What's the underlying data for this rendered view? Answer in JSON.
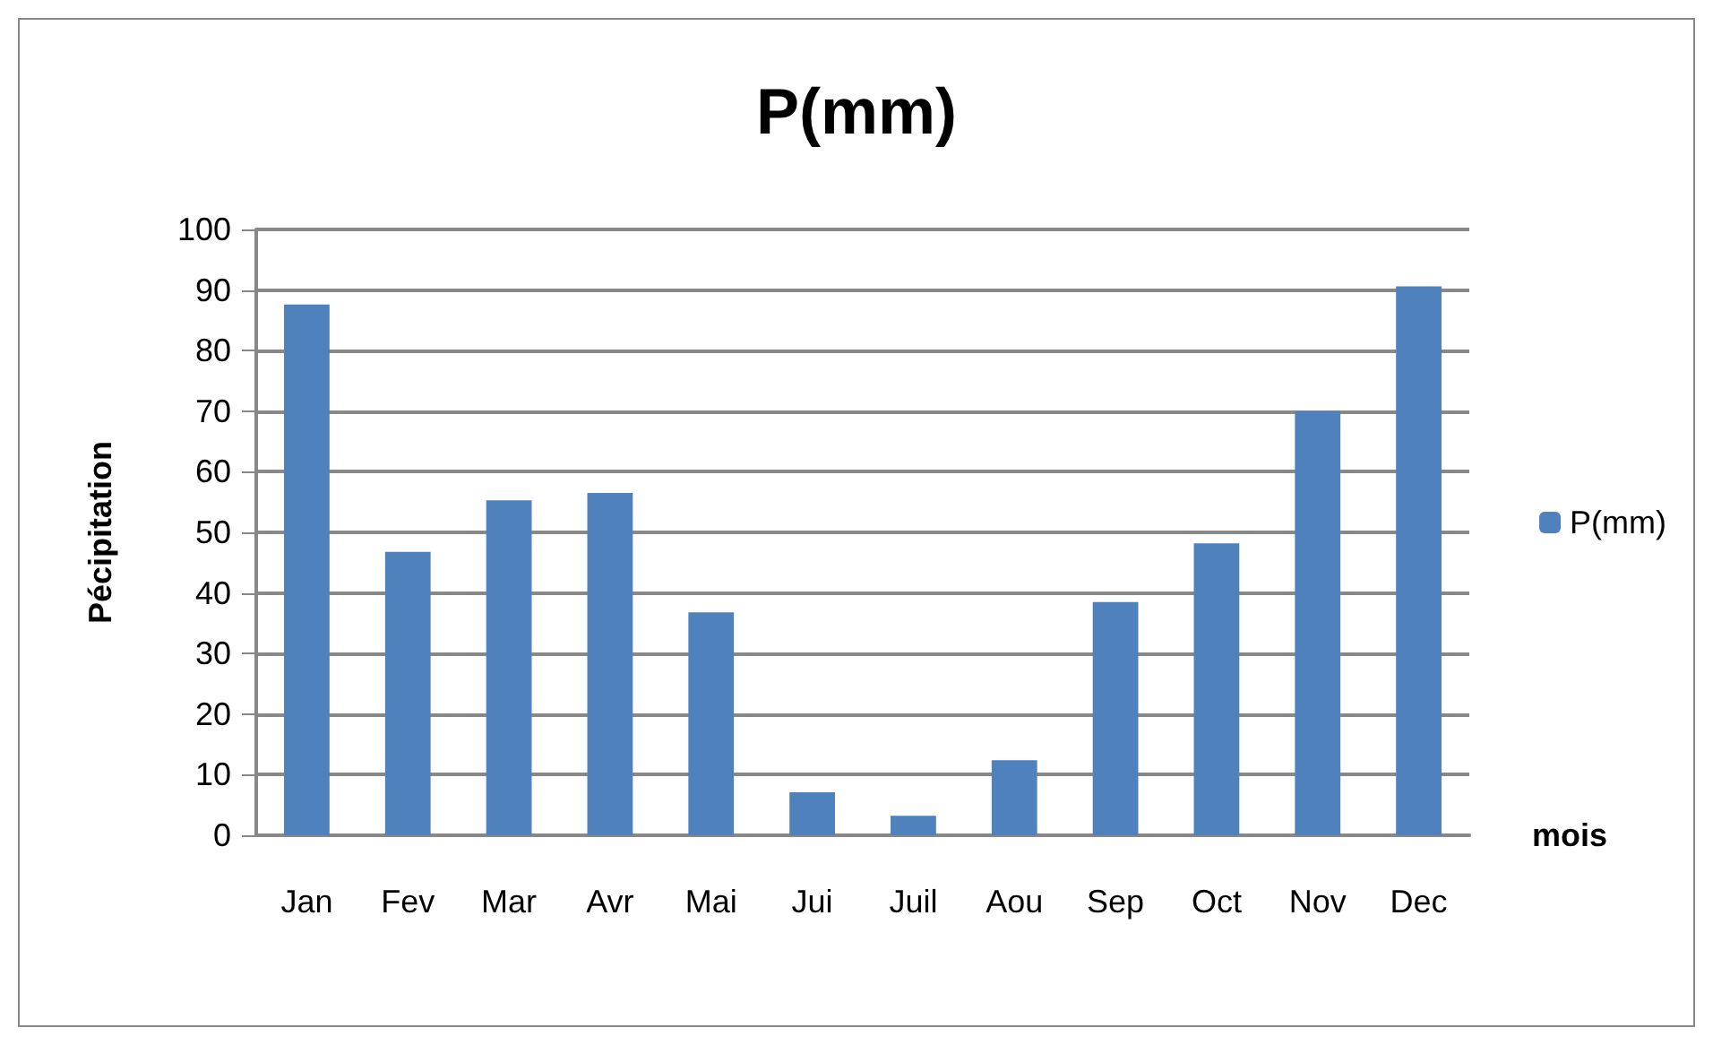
{
  "chart_data": {
    "type": "bar",
    "title": "P(mm)",
    "xlabel": "mois",
    "ylabel": "Pécipitation",
    "categories": [
      "Jan",
      "Fev",
      "Mar",
      "Avr",
      "Mai",
      "Jui",
      "Juil",
      "Aou",
      "Sep",
      "Oct",
      "Nov",
      "Dec"
    ],
    "series": [
      {
        "name": "P(mm)",
        "color": "#4f81bd",
        "values": [
          87.6,
          46.8,
          55.3,
          56.5,
          36.8,
          7.1,
          3.2,
          12.4,
          38.5,
          48.2,
          70,
          90.6
        ]
      }
    ],
    "ylim": [
      0,
      100
    ],
    "yticks": [
      0,
      10,
      20,
      30,
      40,
      50,
      60,
      70,
      80,
      90,
      100
    ],
    "grid": "y",
    "legend": "right"
  }
}
